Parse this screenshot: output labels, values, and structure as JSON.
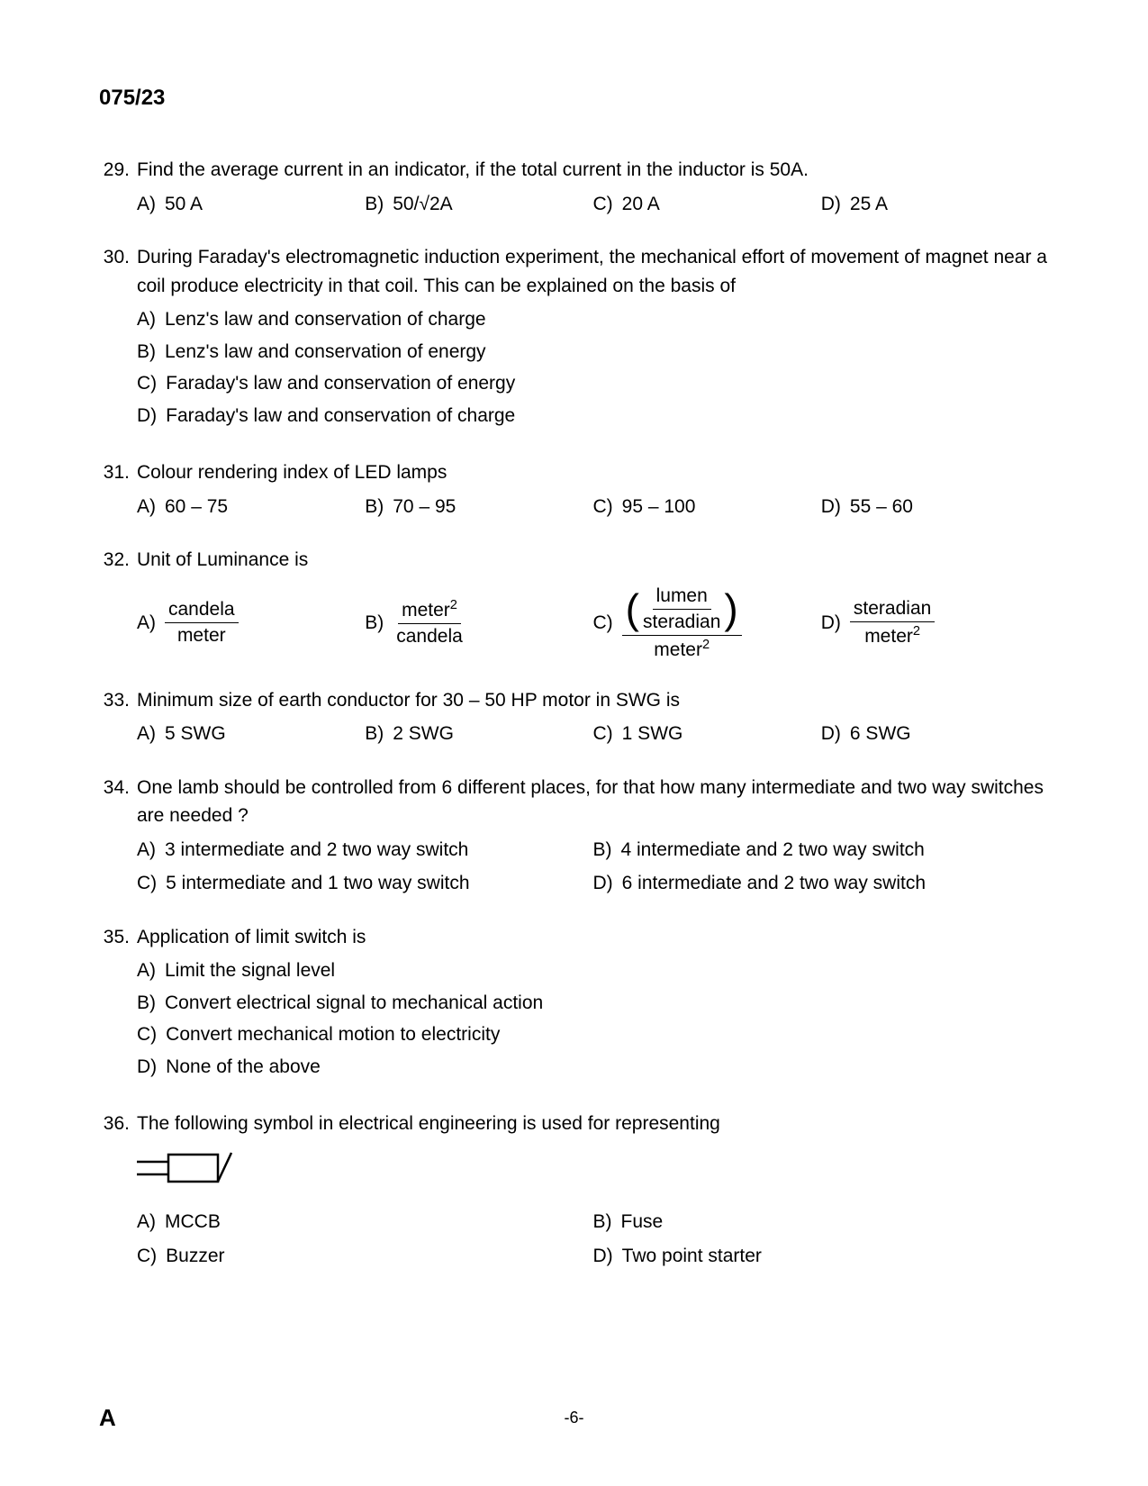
{
  "header": "075/23",
  "footer": {
    "left": "A",
    "center": "-6-"
  },
  "questions": [
    {
      "num": "29.",
      "text": "Find the average current in an indicator, if the total current in the inductor is 50A.",
      "layout": "4col",
      "opts": [
        {
          "label": "A)",
          "text": "50 A"
        },
        {
          "label": "B)",
          "text": "50/√2A"
        },
        {
          "label": "C)",
          "text": "20 A"
        },
        {
          "label": "D)",
          "text": "25 A"
        }
      ]
    },
    {
      "num": "30.",
      "text": "During Faraday's electromagnetic induction experiment, the mechanical effort of movement of magnet near a coil produce electricity in that coil. This can be explained on the basis of",
      "layout": "1col",
      "opts": [
        {
          "label": "A)",
          "text": "Lenz's law and conservation of charge"
        },
        {
          "label": "B)",
          "text": "Lenz's law and conservation of energy"
        },
        {
          "label": "C)",
          "text": "Faraday's law and conservation of energy"
        },
        {
          "label": "D)",
          "text": "Faraday's law and conservation of charge"
        }
      ]
    },
    {
      "num": "31.",
      "text": "Colour rendering index of LED lamps",
      "layout": "4col",
      "opts": [
        {
          "label": "A)",
          "text": "60 – 75"
        },
        {
          "label": "B)",
          "text": "70 – 95"
        },
        {
          "label": "C)",
          "text": "95 – 100"
        },
        {
          "label": "D)",
          "text": "55 – 60"
        }
      ]
    },
    {
      "num": "32.",
      "text": "Unit of Luminance is",
      "layout": "frac",
      "fracOpts": {
        "a": {
          "label": "A)",
          "num": "candela",
          "den": "meter"
        },
        "b": {
          "label": "B)",
          "numHtml": "meter<sup>2</sup>",
          "den": "candela"
        },
        "c": {
          "label": "C)",
          "innerNum": "lumen",
          "innerDen": "steradian",
          "outerDenHtml": "meter<sup>2</sup>"
        },
        "d": {
          "label": "D)",
          "num": "steradian",
          "denHtml": "meter<sup>2</sup>"
        }
      }
    },
    {
      "num": "33.",
      "text": "Minimum size of earth conductor for 30 – 50 HP motor in SWG is",
      "layout": "4col",
      "opts": [
        {
          "label": "A)",
          "text": "5 SWG"
        },
        {
          "label": "B)",
          "text": "2 SWG"
        },
        {
          "label": "C)",
          "text": "1 SWG"
        },
        {
          "label": "D)",
          "text": "6 SWG"
        }
      ]
    },
    {
      "num": "34.",
      "text": "One lamb should be controlled from 6 different places, for that how many intermediate and two way switches are needed ?",
      "layout": "2col",
      "opts": [
        {
          "label": "A)",
          "text": "3 intermediate and 2 two way switch"
        },
        {
          "label": "B)",
          "text": "4 intermediate and 2 two way switch"
        },
        {
          "label": "C)",
          "text": "5 intermediate and 1 two way switch"
        },
        {
          "label": "D)",
          "text": "6 intermediate and 2 two way switch"
        }
      ]
    },
    {
      "num": "35.",
      "text": "Application of limit switch is",
      "layout": "1col",
      "opts": [
        {
          "label": "A)",
          "text": "Limit the signal level"
        },
        {
          "label": "B)",
          "text": "Convert electrical signal to mechanical action"
        },
        {
          "label": "C)",
          "text": "Convert mechanical motion to electricity"
        },
        {
          "label": "D)",
          "text": "None of the above"
        }
      ]
    },
    {
      "num": "36.",
      "text": "The following symbol in electrical engineering is used for representing",
      "layout": "symbol2col",
      "opts": [
        {
          "label": "A)",
          "text": "MCCB"
        },
        {
          "label": "B)",
          "text": "Fuse"
        },
        {
          "label": "C)",
          "text": "Buzzer"
        },
        {
          "label": "D)",
          "text": "Two point starter"
        }
      ]
    }
  ]
}
